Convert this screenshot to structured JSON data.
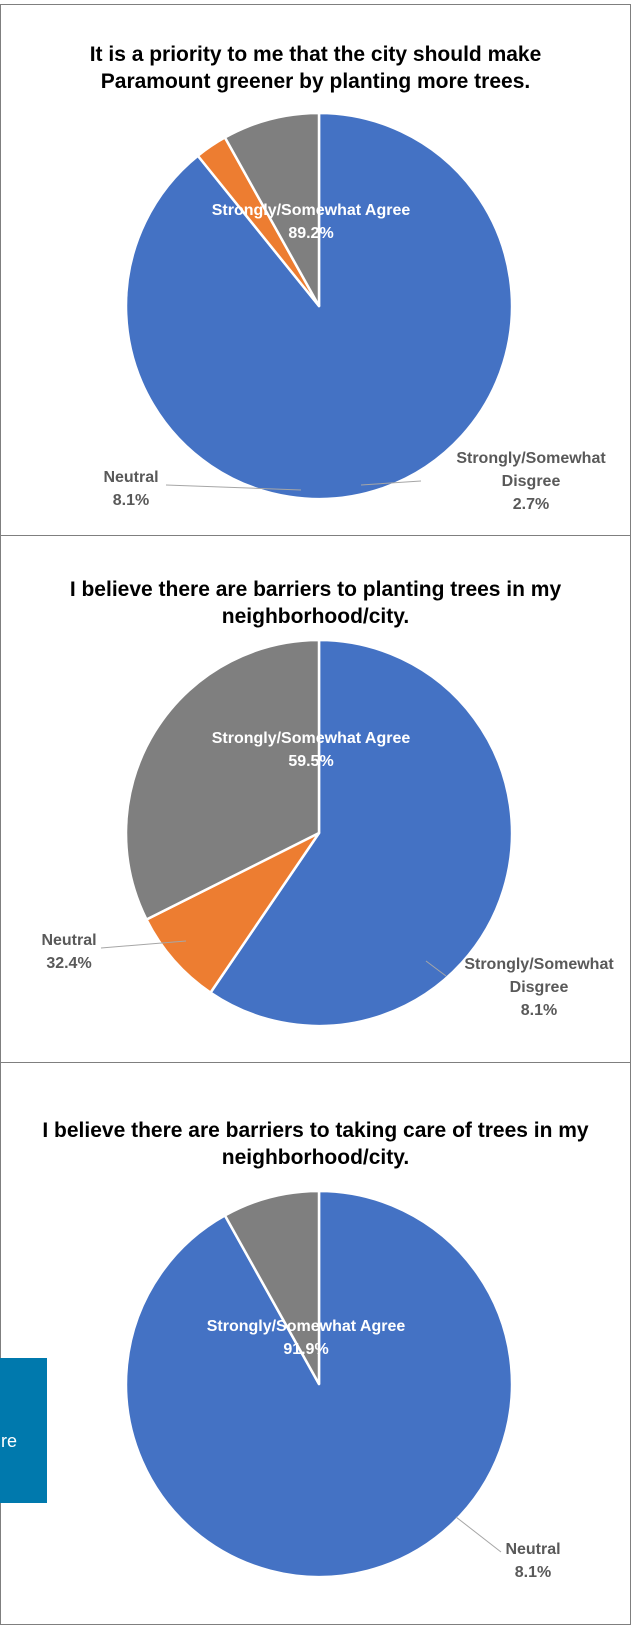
{
  "colors": {
    "agree": "#4472c4",
    "neutral": "#7f7f7f",
    "disagree": "#ed7d31",
    "label": "#595959",
    "side_box": "#0079ad"
  },
  "side_box": {
    "text": "re"
  },
  "chart_data": [
    {
      "type": "pie",
      "title": "It is a priority to me that the city should make Paramount greener by planting more trees.",
      "slices": [
        {
          "name": "Strongly/Somewhat Agree",
          "value": 89.2,
          "label": "89.2%",
          "color": "#4472c4"
        },
        {
          "name": "Strongly/Somewhat Disgree",
          "value": 2.7,
          "label": "2.7%",
          "color": "#ed7d31"
        },
        {
          "name": "Neutral",
          "value": 8.1,
          "label": "8.1%",
          "color": "#7f7f7f"
        }
      ]
    },
    {
      "type": "pie",
      "title": "I believe there are barriers to planting trees in my neighborhood/city.",
      "slices": [
        {
          "name": "Strongly/Somewhat Agree",
          "value": 59.5,
          "label": "59.5%",
          "color": "#4472c4"
        },
        {
          "name": "Strongly/Somewhat Disgree",
          "value": 8.1,
          "label": "8.1%",
          "color": "#ed7d31"
        },
        {
          "name": "Neutral",
          "value": 32.4,
          "label": "32.4%",
          "color": "#7f7f7f"
        }
      ]
    },
    {
      "type": "pie",
      "title": "I believe there are barriers to taking care of trees in my neighborhood/city.",
      "slices": [
        {
          "name": "Strongly/Somewhat Agree",
          "value": 91.9,
          "label": "91.9%",
          "color": "#4472c4"
        },
        {
          "name": "Neutral",
          "value": 8.1,
          "label": "8.1%",
          "color": "#7f7f7f"
        }
      ]
    }
  ]
}
